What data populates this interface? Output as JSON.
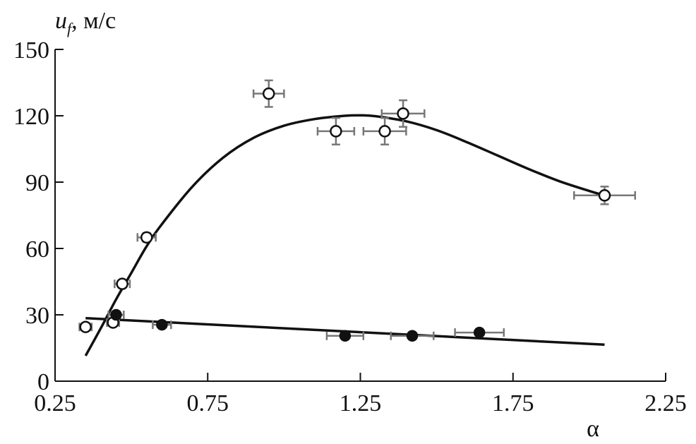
{
  "chart_data": {
    "type": "scatter",
    "title": "",
    "ylabel": {
      "symbol": "u",
      "subscript": "f",
      "unit": ", м/с"
    },
    "xlabel": "α",
    "xlim": [
      0.25,
      2.25
    ],
    "ylim": [
      0,
      150
    ],
    "x_ticks": [
      0.25,
      0.75,
      1.25,
      1.75,
      2.25
    ],
    "x_tick_labels": [
      "0.25",
      "0.75",
      "1.25",
      "1.75",
      "2.25"
    ],
    "y_ticks": [
      0,
      30,
      60,
      90,
      120,
      150
    ],
    "y_tick_labels": [
      "0",
      "30",
      "60",
      "90",
      "120",
      "150"
    ],
    "grid": false,
    "series": [
      {
        "marker": "open-circle",
        "points": [
          {
            "x": 0.35,
            "y": 24.5,
            "xerr": 0.02,
            "yerr": 0
          },
          {
            "x": 0.47,
            "y": 44,
            "xerr": 0.025,
            "yerr": 0
          },
          {
            "x": 0.55,
            "y": 65,
            "xerr": 0.03,
            "yerr": 2
          },
          {
            "x": 0.44,
            "y": 26.5,
            "xerr": 0.02,
            "yerr": 0
          },
          {
            "x": 0.95,
            "y": 130,
            "xerr": 0.05,
            "yerr": 6
          },
          {
            "x": 1.17,
            "y": 113,
            "xerr": 0.06,
            "yerr": 6
          },
          {
            "x": 1.33,
            "y": 113,
            "xerr": 0.07,
            "yerr": 6
          },
          {
            "x": 1.39,
            "y": 121,
            "xerr": 0.07,
            "yerr": 6
          },
          {
            "x": 2.05,
            "y": 84,
            "xerr": 0.1,
            "yerr": 4
          }
        ],
        "fit": [
          [
            0.35,
            11.5
          ],
          [
            0.4,
            24
          ],
          [
            0.45,
            37
          ],
          [
            0.5,
            49
          ],
          [
            0.55,
            61
          ],
          [
            0.6,
            71
          ],
          [
            0.7,
            88
          ],
          [
            0.8,
            101
          ],
          [
            0.9,
            110
          ],
          [
            1.0,
            115.5
          ],
          [
            1.1,
            118.5
          ],
          [
            1.2,
            120
          ],
          [
            1.25,
            120.2
          ],
          [
            1.3,
            119.8
          ],
          [
            1.4,
            117.5
          ],
          [
            1.5,
            113.5
          ],
          [
            1.6,
            108
          ],
          [
            1.7,
            102
          ],
          [
            1.8,
            96
          ],
          [
            1.9,
            90.5
          ],
          [
            2.0,
            86
          ],
          [
            2.05,
            84
          ]
        ]
      },
      {
        "marker": "filled-circle",
        "points": [
          {
            "x": 0.45,
            "y": 30,
            "xerr": 0.025,
            "yerr": 0
          },
          {
            "x": 0.6,
            "y": 25.5,
            "xerr": 0.03,
            "yerr": 0
          },
          {
            "x": 1.2,
            "y": 20.5,
            "xerr": 0.06,
            "yerr": 0
          },
          {
            "x": 1.42,
            "y": 20.5,
            "xerr": 0.07,
            "yerr": 0
          },
          {
            "x": 1.64,
            "y": 22,
            "xerr": 0.08,
            "yerr": 0
          }
        ],
        "fit": [
          [
            0.35,
            28.5
          ],
          [
            2.05,
            16.5
          ]
        ]
      }
    ]
  }
}
